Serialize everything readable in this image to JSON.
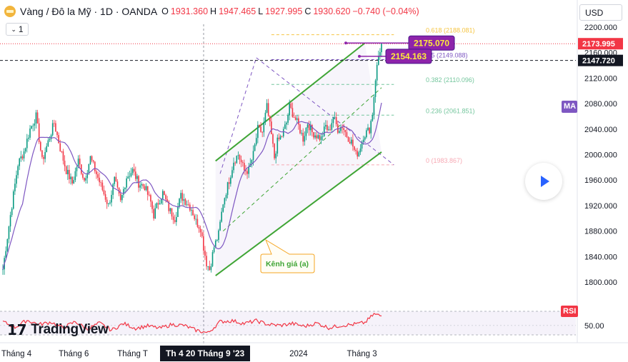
{
  "header": {
    "symbol_title": "Vàng / Đô la Mỹ · 1D · OANDA",
    "open_label": "O",
    "open_value": "1931.360",
    "high_label": "H",
    "high_value": "1947.465",
    "low_label": "L",
    "low_value": "1927.995",
    "close_label": "C",
    "close_value": "1930.620",
    "change": "−0.740 (−0.04%)"
  },
  "controls": {
    "indicator_count": "1",
    "currency": "USD"
  },
  "branding": {
    "logo_text": "TradingView",
    "logo_mark": "17"
  },
  "crosshair_date": "Th 4 20 Tháng 9 '23",
  "colors": {
    "up": "#089981",
    "down": "#f23645",
    "ma": "#7e57c2",
    "channel": "#3fa535",
    "fib": "#f5c542",
    "rsi": "#f23645",
    "label_purple": "#8e24aa"
  },
  "chart_data": {
    "type": "candlestick",
    "price_axis": {
      "ticks": [
        "2200.000",
        "2160.000",
        "2120.000",
        "2080.000",
        "2040.000",
        "2000.000",
        "1960.000",
        "1920.000",
        "1880.000",
        "1840.000",
        "1800.000"
      ],
      "tick_values": [
        2200,
        2160,
        2120,
        2080,
        2040,
        2000,
        1960,
        1920,
        1880,
        1840,
        1800
      ],
      "price_tags": [
        {
          "text": "2173.995",
          "value": 2173.995,
          "style": "red"
        },
        {
          "text": "2147.720",
          "value": 2147.72,
          "style": "dark"
        }
      ]
    },
    "time_axis": {
      "labels": [
        "Tháng 4",
        "Tháng 6",
        "Tháng T",
        "2024",
        "Tháng 3"
      ],
      "label_index": [
        9,
        47,
        86,
        196,
        238
      ]
    },
    "fib": [
      {
        "ratio": "0.618",
        "value": 2188.081,
        "label": "0.618 (2188.081)"
      },
      {
        "ratio": "0.5",
        "value": 2149.088,
        "label": "0.5 (2149.088)"
      },
      {
        "ratio": "0.382",
        "value": 2110.096,
        "label": "0.382 (2110.096)"
      },
      {
        "ratio": "0.236",
        "value": 2061.851,
        "label": "0.236 (2061.851)"
      },
      {
        "ratio": "0",
        "value": 1983.867,
        "label": "0 (1983.867)"
      }
    ],
    "callouts": [
      {
        "text": "2175.070",
        "value": 2175.07
      },
      {
        "text": "2154.163",
        "value": 2154.163
      }
    ],
    "channel_label": "Kênh giá (a)",
    "indicators": {
      "ma_label": "MA",
      "rsi_label": "RSI",
      "rsi_level_text": "50.00",
      "rsi_level": 50
    },
    "series": [
      {
        "name": "XAUUSD",
        "anchors": [
          [
            0,
            1820
          ],
          [
            5,
            1905
          ],
          [
            10,
            1985
          ],
          [
            14,
            2005
          ],
          [
            18,
            2040
          ],
          [
            22,
            2060
          ],
          [
            26,
            1990
          ],
          [
            30,
            2020
          ],
          [
            34,
            2050
          ],
          [
            38,
            2010
          ],
          [
            42,
            1975
          ],
          [
            46,
            1955
          ],
          [
            50,
            1990
          ],
          [
            54,
            1960
          ],
          [
            58,
            1995
          ],
          [
            62,
            1970
          ],
          [
            66,
            1945
          ],
          [
            70,
            1920
          ],
          [
            74,
            1960
          ],
          [
            78,
            1925
          ],
          [
            82,
            1965
          ],
          [
            86,
            1975
          ],
          [
            90,
            1955
          ],
          [
            94,
            1950
          ],
          [
            98,
            1925
          ],
          [
            100,
            1905
          ],
          [
            103,
            1925
          ],
          [
            106,
            1940
          ],
          [
            110,
            1915
          ],
          [
            114,
            1900
          ],
          [
            118,
            1935
          ],
          [
            122,
            1925
          ],
          [
            125,
            1915
          ],
          [
            128,
            1895
          ],
          [
            131,
            1885
          ],
          [
            133,
            1855
          ],
          [
            135,
            1830
          ],
          [
            137,
            1820
          ],
          [
            140,
            1855
          ],
          [
            143,
            1875
          ],
          [
            146,
            1925
          ],
          [
            150,
            1960
          ],
          [
            153,
            1990
          ],
          [
            156,
            2000
          ],
          [
            160,
            1975
          ],
          [
            163,
            1975
          ],
          [
            166,
            2000
          ],
          [
            169,
            2040
          ],
          [
            172,
            2035
          ],
          [
            175,
            2075
          ],
          [
            178,
            2030
          ],
          [
            180,
            1995
          ],
          [
            182,
            2020
          ],
          [
            185,
            2030
          ],
          [
            188,
            2050
          ],
          [
            190,
            2075
          ],
          [
            193,
            2060
          ],
          [
            196,
            2045
          ],
          [
            199,
            2025
          ],
          [
            202,
            2050
          ],
          [
            205,
            2035
          ],
          [
            208,
            2030
          ],
          [
            211,
            2025
          ],
          [
            214,
            2045
          ],
          [
            216,
            2035
          ],
          [
            219,
            2060
          ],
          [
            222,
            2040
          ],
          [
            225,
            2045
          ],
          [
            228,
            2030
          ],
          [
            231,
            2020
          ],
          [
            234,
            2000
          ],
          [
            236,
            2005
          ],
          [
            239,
            2030
          ],
          [
            241,
            2035
          ],
          [
            243,
            2040
          ],
          [
            245,
            2065
          ],
          [
            247,
            2120
          ],
          [
            249,
            2155
          ],
          [
            251,
            2174
          ]
        ]
      }
    ],
    "rsi": [
      [
        0,
        58
      ],
      [
        8,
        46
      ],
      [
        16,
        61
      ],
      [
        24,
        52
      ],
      [
        32,
        57
      ],
      [
        40,
        45
      ],
      [
        48,
        58
      ],
      [
        56,
        42
      ],
      [
        64,
        55
      ],
      [
        72,
        40
      ],
      [
        80,
        54
      ],
      [
        88,
        44
      ],
      [
        96,
        49
      ],
      [
        104,
        44
      ],
      [
        112,
        52
      ],
      [
        120,
        50
      ],
      [
        128,
        40
      ],
      [
        136,
        34
      ],
      [
        144,
        58
      ],
      [
        152,
        60
      ],
      [
        160,
        54
      ],
      [
        168,
        60
      ],
      [
        176,
        52
      ],
      [
        184,
        50
      ],
      [
        192,
        54
      ],
      [
        200,
        48
      ],
      [
        208,
        55
      ],
      [
        216,
        45
      ],
      [
        224,
        50
      ],
      [
        232,
        52
      ],
      [
        240,
        56
      ],
      [
        246,
        74
      ],
      [
        251,
        70
      ]
    ]
  }
}
